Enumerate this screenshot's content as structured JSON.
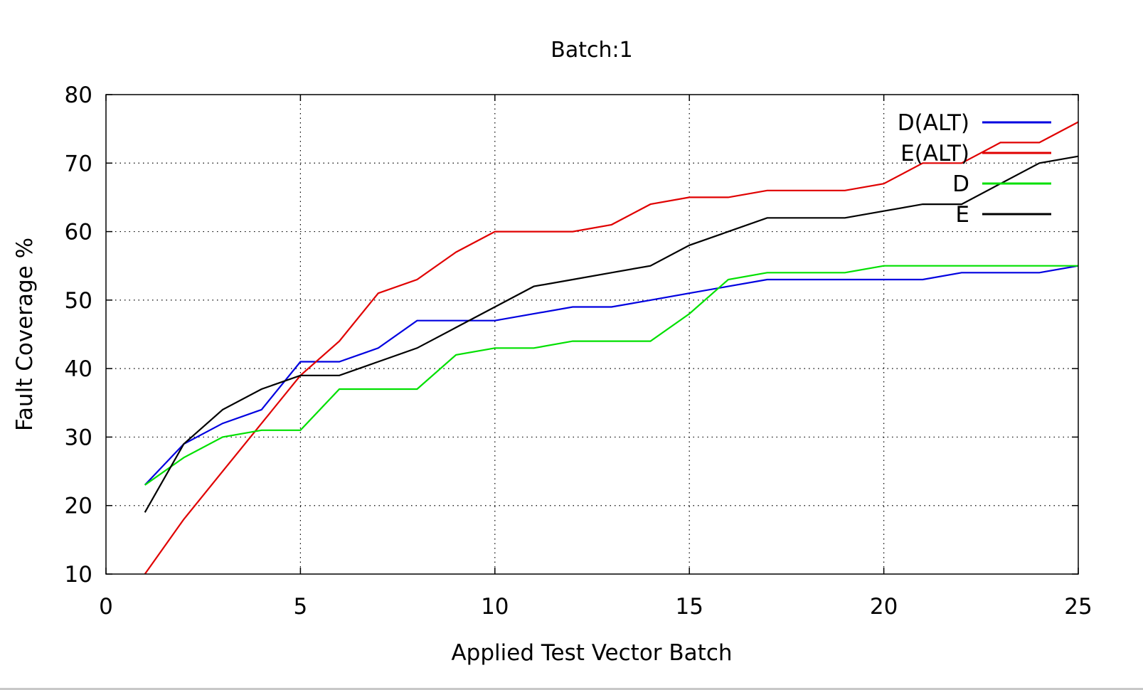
{
  "chart_data": {
    "type": "line",
    "title": "Batch:1",
    "xlabel": "Applied Test Vector Batch",
    "ylabel": "Fault Coverage %",
    "xlim": [
      0,
      25
    ],
    "ylim": [
      10,
      80
    ],
    "xticks": [
      0,
      5,
      10,
      15,
      20,
      25
    ],
    "yticks": [
      10,
      20,
      30,
      40,
      50,
      60,
      70,
      80
    ],
    "grid": true,
    "legend_position": "top-right",
    "x": [
      1,
      2,
      3,
      4,
      5,
      6,
      7,
      8,
      9,
      10,
      11,
      12,
      13,
      14,
      15,
      16,
      17,
      18,
      19,
      20,
      21,
      22,
      23,
      24,
      25
    ],
    "series": [
      {
        "name": "D(ALT)",
        "color": "#0000e0",
        "values": [
          23,
          29,
          32,
          34,
          41,
          41,
          43,
          47,
          47,
          47,
          48,
          49,
          49,
          50,
          51,
          52,
          53,
          53,
          53,
          53,
          53,
          54,
          54,
          54,
          55
        ]
      },
      {
        "name": "E(ALT)",
        "color": "#e00000",
        "values": [
          10,
          18,
          25,
          32,
          39,
          44,
          51,
          53,
          57,
          60,
          60,
          60,
          61,
          64,
          65,
          65,
          66,
          66,
          66,
          67,
          70,
          70,
          73,
          73,
          76
        ]
      },
      {
        "name": "D",
        "color": "#00e000",
        "values": [
          23,
          27,
          30,
          31,
          31,
          37,
          37,
          37,
          42,
          43,
          43,
          44,
          44,
          44,
          48,
          53,
          54,
          54,
          54,
          55,
          55,
          55,
          55,
          55,
          55
        ]
      },
      {
        "name": "E",
        "color": "#000000",
        "values": [
          19,
          29,
          34,
          37,
          39,
          39,
          41,
          43,
          46,
          49,
          52,
          53,
          54,
          55,
          58,
          60,
          62,
          62,
          62,
          63,
          64,
          64,
          67,
          70,
          71
        ]
      }
    ]
  }
}
